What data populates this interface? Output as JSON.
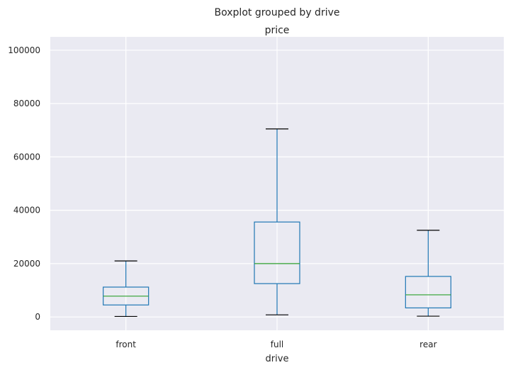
{
  "chart_data": {
    "type": "boxplot",
    "suptitle": "Boxplot grouped by drive",
    "title": "price",
    "xlabel": "drive",
    "ylabel": "",
    "categories": [
      "front",
      "full",
      "rear"
    ],
    "boxes": [
      {
        "category": "front",
        "whislo": 200,
        "q1": 4500,
        "med": 7800,
        "q3": 11200,
        "whishi": 21000
      },
      {
        "category": "full",
        "whislo": 800,
        "q1": 12500,
        "med": 20000,
        "q3": 35600,
        "whishi": 70500
      },
      {
        "category": "rear",
        "whislo": 300,
        "q1": 3400,
        "med": 8300,
        "q3": 15200,
        "whishi": 32500
      }
    ],
    "yticks": [
      0,
      20000,
      40000,
      60000,
      80000,
      100000
    ],
    "ylim": [
      -5000,
      105000
    ],
    "grid": true,
    "colors": {
      "background": "#EAEAF2",
      "grid": "#FFFFFF",
      "box": "#1F77B4",
      "median": "#2CA02C",
      "cap": "#000000",
      "text": "#262626"
    }
  }
}
